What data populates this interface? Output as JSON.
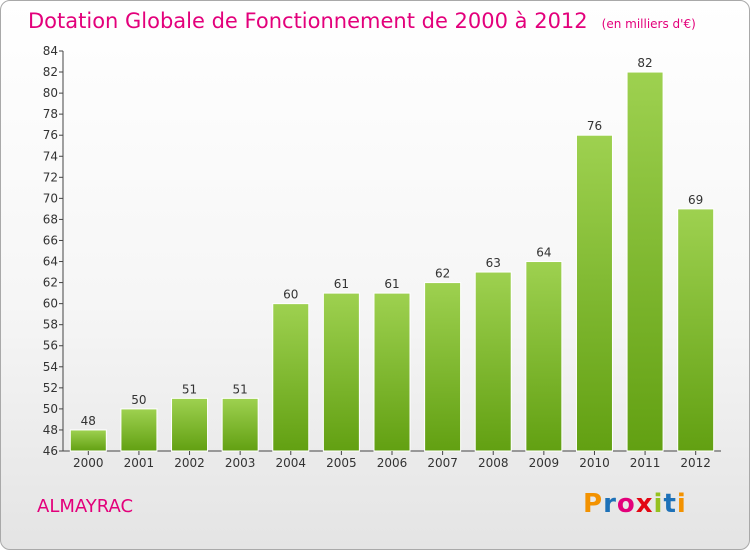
{
  "title": "Dotation Globale de Fonctionnement de 2000 à 2012",
  "unit_note": "(en milliers d'€)",
  "commune": "ALMAYRAC",
  "logo": {
    "letters": [
      "P",
      "r",
      "o",
      "x",
      "i",
      "t",
      "i"
    ]
  },
  "colors": {
    "title": "#e3007b",
    "bar_light": "#9ed150",
    "bar_dark": "#62a012",
    "logo": [
      "#f39200",
      "#1d71b8",
      "#e3007b",
      "#e30613",
      "#95c11f",
      "#1d71b8",
      "#f39200"
    ]
  },
  "chart_data": {
    "type": "bar",
    "categories": [
      "2000",
      "2001",
      "2002",
      "2003",
      "2004",
      "2005",
      "2006",
      "2007",
      "2008",
      "2009",
      "2010",
      "2011",
      "2012"
    ],
    "values": [
      48,
      50,
      51,
      51,
      60,
      61,
      61,
      62,
      63,
      64,
      76,
      82,
      69
    ],
    "ylim": [
      46,
      84
    ],
    "yticks": [
      46,
      48,
      50,
      52,
      54,
      56,
      58,
      60,
      62,
      64,
      66,
      68,
      70,
      72,
      74,
      76,
      78,
      80,
      82,
      84
    ],
    "grid": false
  }
}
